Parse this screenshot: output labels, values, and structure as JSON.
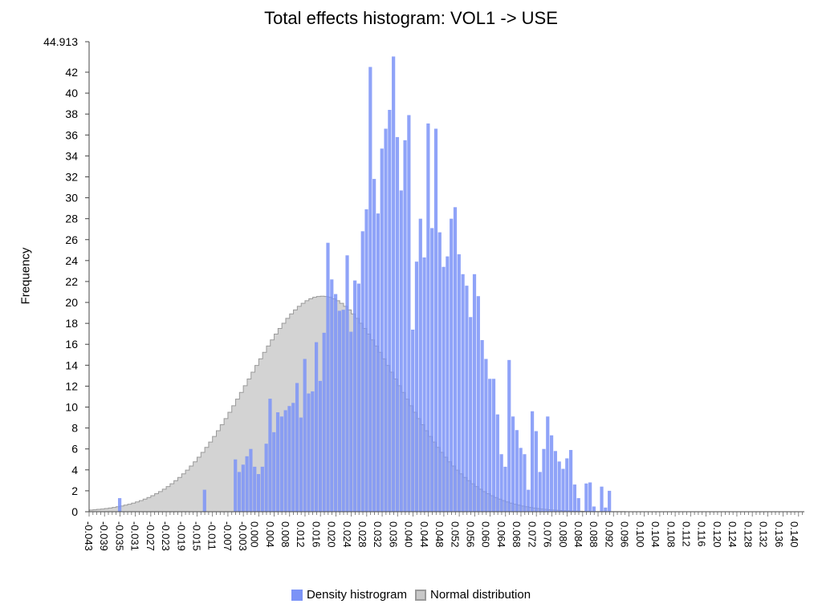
{
  "chart_data": {
    "type": "bar",
    "title": "Total effects histogram: VOL1 -> USE",
    "xlabel": "",
    "ylabel": "Frequency",
    "ylim": [
      0,
      44.913
    ],
    "ytick_values": [
      0,
      2,
      4,
      6,
      8,
      10,
      12,
      14,
      16,
      18,
      20,
      22,
      24,
      26,
      28,
      30,
      32,
      34,
      36,
      38,
      40,
      42
    ],
    "ymax_label": "44.913",
    "xlim": [
      -0.043,
      0.1425
    ],
    "xtick_labels": [
      "-0.043",
      "-0.039",
      "-0.035",
      "-0.031",
      "-0.027",
      "-0.023",
      "-0.019",
      "-0.015",
      "-0.011",
      "-0.007",
      "-0.003",
      "0.000",
      "0.004",
      "0.008",
      "0.012",
      "0.016",
      "0.020",
      "0.024",
      "0.028",
      "0.032",
      "0.036",
      "0.040",
      "0.044",
      "0.048",
      "0.052",
      "0.056",
      "0.060",
      "0.064",
      "0.068",
      "0.072",
      "0.076",
      "0.080",
      "0.084",
      "0.088",
      "0.092",
      "0.096",
      "0.100",
      "0.104",
      "0.108",
      "0.112",
      "0.116",
      "0.120",
      "0.124",
      "0.128",
      "0.132",
      "0.136",
      "0.140"
    ],
    "grid": false,
    "legend_position": "bottom",
    "series": [
      {
        "name": "Density histrogram",
        "color": "#7b93f7",
        "kind": "histogram",
        "bin_width": 0.001,
        "bin_start": -0.0355,
        "values": [
          1.3,
          0,
          0,
          0,
          0,
          0,
          0,
          0,
          0,
          0,
          0,
          0,
          0,
          0,
          0,
          0,
          0,
          0,
          0,
          0,
          0,
          0,
          2.1,
          0,
          0,
          0,
          0,
          0,
          0,
          0,
          5.0,
          3.8,
          4.5,
          5.3,
          6.0,
          4.3,
          3.6,
          4.3,
          6.5,
          10.8,
          7.6,
          9.5,
          9.1,
          9.7,
          10.1,
          10.4,
          12.3,
          9.0,
          14.6,
          11.3,
          11.5,
          16.2,
          12.5,
          17.1,
          25.7,
          22.2,
          20.8,
          19.2,
          19.3,
          24.5,
          17.2,
          22.1,
          21.8,
          26.8,
          28.9,
          42.5,
          31.8,
          28.5,
          34.7,
          36.6,
          38.4,
          43.5,
          35.8,
          30.7,
          35.5,
          37.9,
          17.4,
          23.9,
          28.0,
          24.3,
          37.1,
          27.1,
          36.6,
          26.7,
          23.4,
          24.4,
          28.0,
          29.1,
          24.6,
          22.7,
          21.6,
          18.6,
          22.7,
          20.6,
          16.4,
          14.6,
          12.7,
          12.7,
          9.3,
          5.5,
          4.3,
          14.5,
          9.1,
          7.8,
          6.1,
          5.5,
          2.1,
          9.6,
          7.7,
          3.8,
          6.0,
          9.1,
          7.3,
          5.8,
          4.8,
          4.1,
          5.1,
          5.9,
          2.6,
          1.3,
          0,
          2.7,
          2.8,
          0.5,
          0,
          2.4,
          0.4,
          2.0,
          0,
          0,
          0,
          0,
          0,
          0,
          0,
          0,
          0,
          0,
          0,
          0,
          0,
          0,
          0,
          0,
          0,
          0,
          0,
          0,
          0,
          0,
          0,
          0,
          0,
          0,
          0,
          0,
          0,
          0,
          0,
          0,
          0,
          0,
          0,
          0,
          0,
          0,
          0,
          0,
          0,
          0,
          0,
          0,
          0,
          0,
          0,
          0,
          0,
          0,
          0,
          0,
          0,
          0,
          0,
          0,
          0,
          0,
          0,
          0,
          0,
          0,
          0,
          0,
          0,
          0,
          0,
          0,
          0,
          0
        ]
      },
      {
        "name": "Normal distribution",
        "color": "#c8c8c8",
        "kind": "normal",
        "mean": 0.0175,
        "std": 0.0193,
        "peak": 20.6,
        "x_range": [
          -0.043,
          0.1425
        ]
      }
    ]
  }
}
